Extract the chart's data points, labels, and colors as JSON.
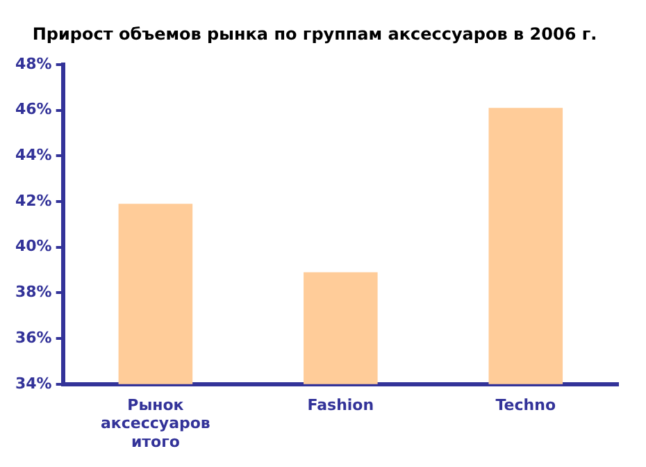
{
  "chart_data": {
    "type": "bar",
    "title": "Прирост объемов рынка по группам аксессуаров в 2006 г.",
    "categories": [
      "Рынок аксессуаров итого",
      "Fashion",
      "Techno"
    ],
    "values": [
      41.9,
      38.9,
      46.1
    ],
    "color": "#ffcc99",
    "ylim": [
      34,
      48
    ],
    "yticks": [
      {
        "value": 34,
        "label": "34%"
      },
      {
        "value": 36,
        "label": "36%"
      },
      {
        "value": 38,
        "label": "38%"
      },
      {
        "value": 40,
        "label": "40%"
      },
      {
        "value": 42,
        "label": "42%"
      },
      {
        "value": 44,
        "label": "44%"
      },
      {
        "value": 46,
        "label": "46%"
      },
      {
        "value": 48,
        "label": "48%"
      }
    ],
    "grid": false,
    "legend": false
  }
}
